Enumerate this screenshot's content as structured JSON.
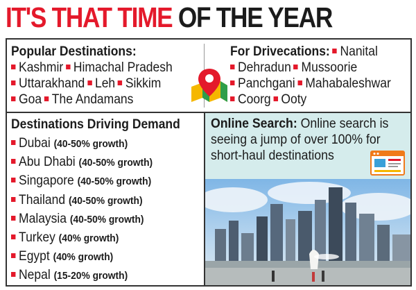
{
  "headline": {
    "part1": "IT'S THAT TIME",
    "part2": " OF THE YEAR"
  },
  "popular": {
    "title": "Popular Destinations:",
    "lines": [
      [
        "Kashmir",
        "Himachal Pradesh"
      ],
      [
        "Uttarakhand",
        "Leh",
        "Sikkim"
      ],
      [
        "Goa",
        "The Andamans"
      ]
    ]
  },
  "drivecations": {
    "title": "For Drivecations:",
    "first": "Nanital",
    "lines": [
      [
        "Dehradun",
        "Mussoorie"
      ],
      [
        "Panchgani",
        "Mahabaleshwar"
      ],
      [
        "Coorg",
        "Ooty"
      ]
    ]
  },
  "demand": {
    "title": "Destinations Driving Demand",
    "rows": [
      {
        "name": "Dubai",
        "growth": "(40-50% growth)"
      },
      {
        "name": "Abu Dhabi",
        "growth": "(40-50% growth)"
      },
      {
        "name": "Singapore",
        "growth": "(40-50% growth)"
      },
      {
        "name": "Thailand",
        "growth": "(40-50% growth)"
      },
      {
        "name": "Malaysia",
        "growth": "(40-50% growth)"
      },
      {
        "name": "Turkey",
        "growth": "(40% growth)"
      },
      {
        "name": "Egypt",
        "growth": "(40% growth)"
      },
      {
        "name": "Nepal",
        "growth": "(15-20% growth)"
      }
    ]
  },
  "search": {
    "label": "Online Search:",
    "text": " Online search is seeing a jump of over 100% for short-haul destinations"
  },
  "colors": {
    "accent": "#e4192b",
    "panel": "#d5ecec",
    "text": "#1b1b1b"
  },
  "icons": {
    "map": "map-pin-icon",
    "browser": "browser-window-icon"
  }
}
